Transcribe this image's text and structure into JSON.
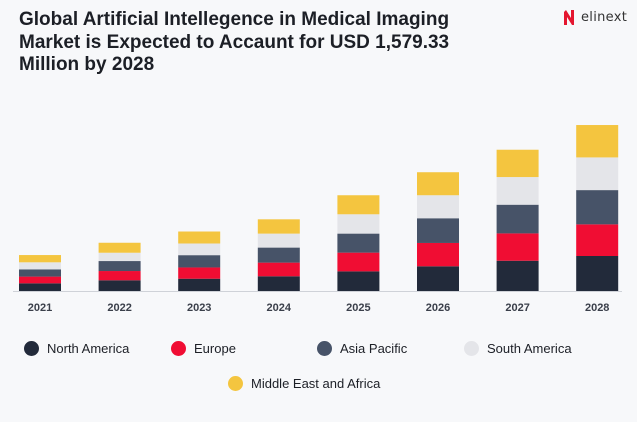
{
  "title": "Global Artificial Intellegence in Medical Imaging Market is Expected to Accaunt for USD 1,579.33 Million by 2028",
  "brand": {
    "name": "elinext",
    "color": "#e4162f"
  },
  "chart_data": {
    "type": "bar",
    "stacked": true,
    "title": "Global Artificial Intellegence in Medical Imaging Market is Expected to Accaunt for USD 1,579.33 Million by 2028",
    "unit": "USD Million (estimated from bar heights; 2028 total = 1,579.33)",
    "categories": [
      "2021",
      "2022",
      "2023",
      "2024",
      "2025",
      "2026",
      "2027",
      "2028"
    ],
    "series": [
      {
        "name": "North America",
        "color": "#222a3a",
        "values": [
          73,
          102,
          117,
          140,
          187,
          235,
          288,
          333
        ]
      },
      {
        "name": "Europe",
        "color": "#f00d33",
        "values": [
          64,
          88,
          107,
          130,
          178,
          222,
          260,
          301
        ]
      },
      {
        "name": "Asia Pacific",
        "color": "#475368",
        "values": [
          69,
          95,
          117,
          143,
          181,
          235,
          273,
          326
        ]
      },
      {
        "name": "South America",
        "color": "#e4e5e9",
        "values": [
          67,
          79,
          111,
          133,
          184,
          219,
          263,
          311
        ]
      },
      {
        "name": "Middle East and Africa",
        "color": "#f4c53f",
        "values": [
          69,
          95,
          114,
          136,
          181,
          219,
          260,
          308
        ]
      }
    ],
    "ylim": [
      0,
      1579.33
    ],
    "grid": false,
    "y_axis_shown": false,
    "legend_position": "bottom"
  }
}
